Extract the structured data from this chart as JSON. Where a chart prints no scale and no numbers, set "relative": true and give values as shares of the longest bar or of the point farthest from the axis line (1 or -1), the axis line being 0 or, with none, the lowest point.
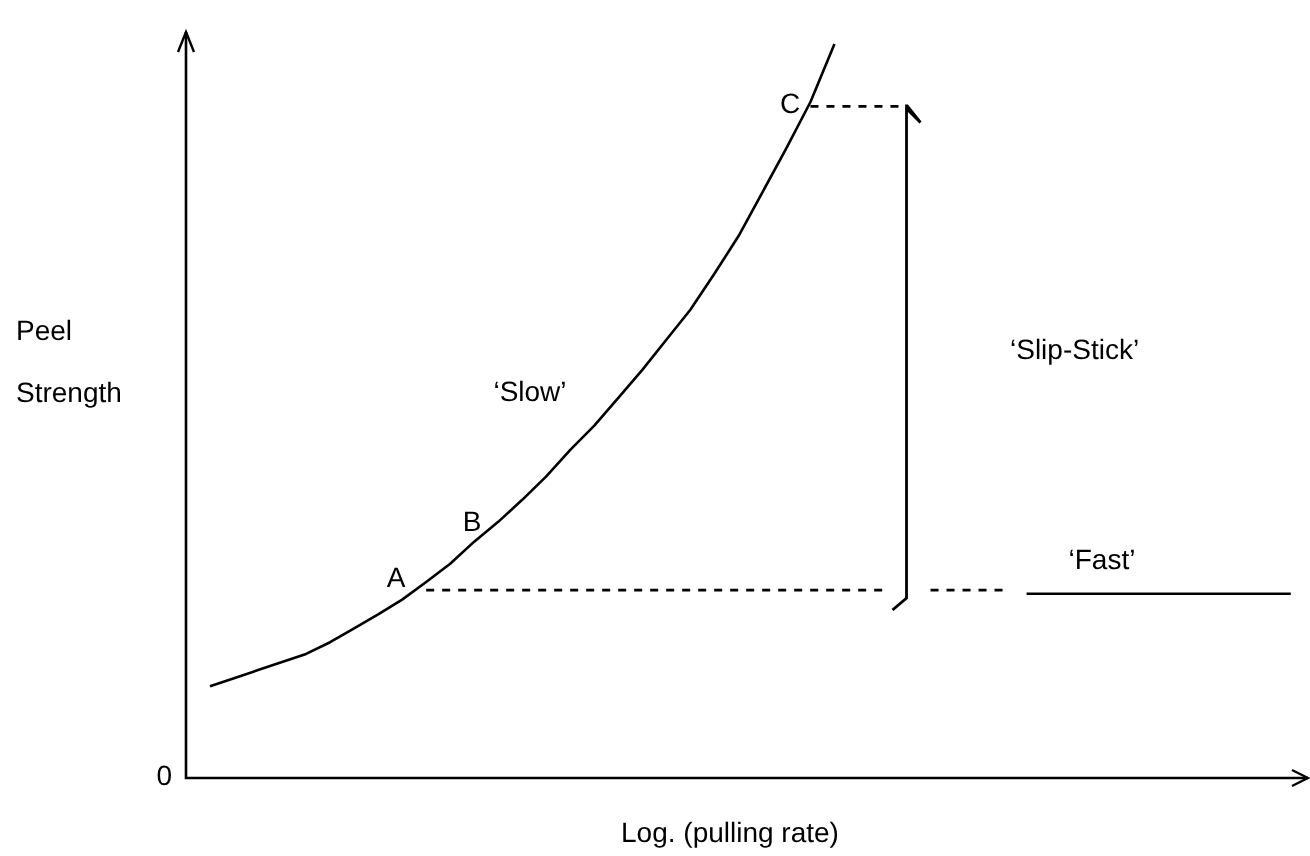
{
  "chart_data": {
    "type": "line",
    "relative": true,
    "xlabel": "Log. (pulling rate)",
    "ylabel": "Peel Strength",
    "marker": "none",
    "categories": [
      null,
      null,
      null,
      null,
      null,
      null,
      null,
      null,
      null,
      null,
      null,
      null,
      null,
      null,
      null,
      null,
      null,
      null,
      null,
      null,
      null,
      null,
      null,
      null,
      null,
      null,
      null,
      null,
      null,
      null,
      null,
      null,
      null,
      null,
      null,
      null,
      null,
      null,
      null,
      null,
      null,
      null,
      null,
      null,
      null,
      null,
      null
    ],
    "series": [
      {
        "color": "#000000",
        "line_style": "solid",
        "values": [
          null,
          0.125,
          0.136,
          0.147,
          0.158,
          0.169,
          0.185,
          0.204,
          0.223,
          0.243,
          0.267,
          0.292,
          0.322,
          0.349,
          0.379,
          0.411,
          0.447,
          0.48,
          0.518,
          0.556,
          0.597,
          0.638,
          0.687,
          0.738,
          0.798,
          0.858,
          0.921,
          1.0,
          null,
          null,
          null,
          null,
          null,
          null,
          null,
          null,
          null,
          null,
          null,
          null,
          null,
          null,
          null,
          null,
          null,
          null,
          null
        ]
      },
      {
        "color": "#000000",
        "line_style": "dashed",
        "values": [
          null,
          null,
          null,
          null,
          null,
          null,
          null,
          null,
          null,
          null,
          0.256,
          0.256,
          0.256,
          0.256,
          0.256,
          0.256,
          0.256,
          0.256,
          0.256,
          0.256,
          0.256,
          0.256,
          0.256,
          0.256,
          0.256,
          0.256,
          0.256,
          0.256,
          0.256,
          0.256,
          null,
          0.256,
          0.256,
          0.256,
          0.256,
          null,
          null,
          null,
          null,
          null,
          null,
          null,
          null,
          null,
          null,
          null,
          null
        ]
      },
      {
        "color": "#000000",
        "line_style": "dashed",
        "values": [
          null,
          null,
          null,
          null,
          null,
          null,
          null,
          null,
          null,
          null,
          null,
          null,
          null,
          null,
          null,
          null,
          null,
          null,
          null,
          null,
          null,
          null,
          null,
          null,
          null,
          null,
          0.915,
          0.915,
          0.915,
          0.915,
          0.915,
          null,
          null,
          null,
          null,
          null,
          null,
          null,
          null,
          null,
          null,
          null,
          null,
          null,
          null,
          null,
          null
        ]
      },
      {
        "color": "#000000",
        "line_style": "solid",
        "values": [
          null,
          null,
          null,
          null,
          null,
          null,
          null,
          null,
          null,
          null,
          null,
          null,
          null,
          null,
          null,
          null,
          null,
          null,
          null,
          null,
          null,
          null,
          null,
          null,
          null,
          null,
          null,
          null,
          null,
          null,
          null,
          null,
          null,
          null,
          null,
          0.251,
          0.251,
          0.251,
          0.251,
          0.251,
          0.251,
          0.251,
          0.251,
          0.251,
          0.251,
          0.251,
          0.251
        ]
      }
    ],
    "annotations": [
      "0",
      "A",
      "B",
      "C",
      "‘Slow’",
      "‘Slip-Stick’",
      "‘Fast’"
    ]
  }
}
